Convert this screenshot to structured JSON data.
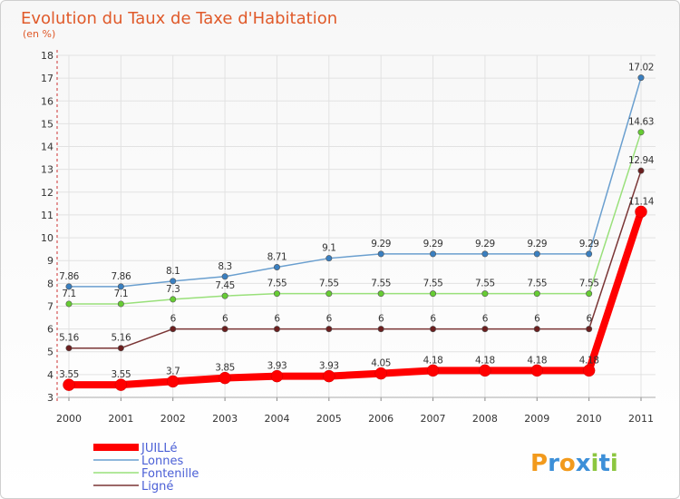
{
  "chart_data": {
    "type": "line",
    "title": "Evolution du Taux de Taxe d'Habitation",
    "subtitle": "(en %)",
    "x": [
      "2000",
      "2001",
      "2002",
      "2003",
      "2004",
      "2005",
      "2006",
      "2007",
      "2008",
      "2009",
      "2010",
      "2011"
    ],
    "ylim": [
      3,
      18
    ],
    "yticks": [
      "3",
      "4",
      "5",
      "6",
      "7",
      "8",
      "9",
      "10",
      "11",
      "12",
      "13",
      "14",
      "15",
      "16",
      "17",
      "18"
    ],
    "series": [
      {
        "name": "JUILLé",
        "color": "#ff0000",
        "values": [
          3.55,
          3.55,
          3.7,
          3.85,
          3.93,
          3.93,
          4.05,
          4.18,
          4.18,
          4.18,
          4.18,
          11.14
        ],
        "labels": [
          "3.55",
          "3.55",
          "3.7",
          "3.85",
          "3.93",
          "3.93",
          "4.05",
          "4.18",
          "4.18",
          "4.18",
          "4.18",
          "11.14"
        ]
      },
      {
        "name": "Lonnes",
        "color": "#6a9fcf",
        "marker": "#3a7fc0",
        "values": [
          7.86,
          7.86,
          8.1,
          8.3,
          8.71,
          9.1,
          9.29,
          9.29,
          9.29,
          9.29,
          9.29,
          17.02
        ],
        "labels": [
          "7.86",
          "7.86",
          "8.1",
          "8.3",
          "8.71",
          "9.1",
          "9.29",
          "9.29",
          "9.29",
          "9.29",
          "9.29",
          "17.02"
        ]
      },
      {
        "name": "Fontenille",
        "color": "#99e07a",
        "marker": "#66cc33",
        "values": [
          7.1,
          7.1,
          7.3,
          7.45,
          7.55,
          7.55,
          7.55,
          7.55,
          7.55,
          7.55,
          7.55,
          14.63
        ],
        "labels": [
          "7.1",
          "7.1",
          "7.3",
          "7.45",
          "7.55",
          "7.55",
          "7.55",
          "7.55",
          "7.55",
          "7.55",
          "7.55",
          "14.63"
        ]
      },
      {
        "name": "Ligné",
        "color": "#7a3535",
        "marker": "#6b1f1f",
        "values": [
          5.16,
          5.16,
          6,
          6,
          6,
          6,
          6,
          6,
          6,
          6,
          6,
          12.94
        ],
        "labels": [
          "5.16",
          "5.16",
          "6",
          "6",
          "6",
          "6",
          "6",
          "6",
          "6",
          "6",
          "6",
          "12.94"
        ]
      }
    ],
    "legend_position": "bottom-left"
  },
  "logo": {
    "text": "Proxiti",
    "letters": [
      "P",
      "r",
      "o",
      "x",
      "i",
      "t",
      "i"
    ],
    "colors": [
      "#f29a1c",
      "#3c8fd8",
      "#f29a1c",
      "#3c8fd8",
      "#8cc63f",
      "#3c8fd8",
      "#8cc63f"
    ]
  }
}
